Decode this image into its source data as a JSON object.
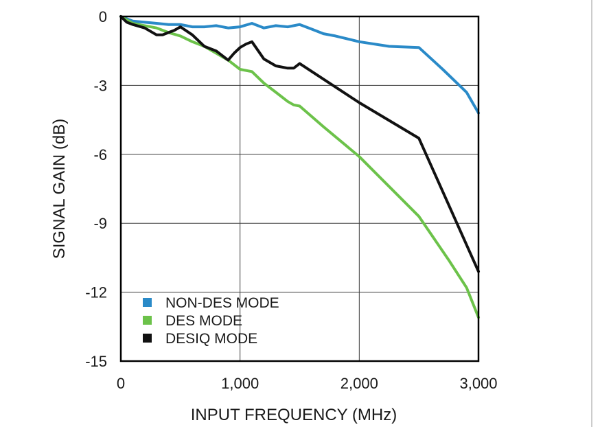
{
  "chart_data": {
    "type": "line",
    "xlabel": "INPUT FREQUENCY (MHz)",
    "ylabel": "SIGNAL GAIN (dB)",
    "xlim": [
      0,
      3000
    ],
    "ylim": [
      -15,
      0
    ],
    "x_ticks": [
      0,
      1000,
      2000,
      3000
    ],
    "x_tick_labels": [
      "0",
      "1,000",
      "2,000",
      "3,000"
    ],
    "y_ticks": [
      0,
      -3,
      -6,
      -9,
      -12,
      -15
    ],
    "y_tick_labels": [
      "0",
      "-3",
      "-6",
      "-9",
      "-12",
      "-15"
    ],
    "grid": true,
    "legend_position": "bottom-left",
    "series": [
      {
        "name": "NON-DES MODE",
        "color": "#2a8ac8",
        "x": [
          0,
          100,
          300,
          400,
          500,
          600,
          700,
          800,
          900,
          1000,
          1100,
          1200,
          1300,
          1400,
          1500,
          1600,
          1700,
          1800,
          2000,
          2250,
          2500,
          2700,
          2900,
          3000
        ],
        "y": [
          0,
          -0.2,
          -0.3,
          -0.35,
          -0.35,
          -0.45,
          -0.45,
          -0.4,
          -0.5,
          -0.45,
          -0.3,
          -0.5,
          -0.4,
          -0.45,
          -0.35,
          -0.55,
          -0.75,
          -0.85,
          -1.1,
          -1.3,
          -1.35,
          -2.3,
          -3.3,
          -4.2
        ]
      },
      {
        "name": "DES MODE",
        "color": "#6cc24a",
        "x": [
          0,
          100,
          200,
          300,
          400,
          500,
          600,
          700,
          800,
          900,
          1000,
          1100,
          1200,
          1300,
          1400,
          1450,
          1500,
          1700,
          2000,
          2250,
          2500,
          2750,
          2900,
          3000
        ],
        "y": [
          0,
          -0.3,
          -0.4,
          -0.5,
          -0.7,
          -0.85,
          -1.1,
          -1.3,
          -1.6,
          -1.9,
          -2.3,
          -2.4,
          -2.9,
          -3.3,
          -3.7,
          -3.85,
          -3.9,
          -4.8,
          -6.1,
          -7.4,
          -8.7,
          -10.6,
          -11.8,
          -13.1
        ]
      },
      {
        "name": "DESIQ MODE",
        "color": "#111111",
        "x": [
          0,
          50,
          100,
          200,
          300,
          350,
          400,
          450,
          500,
          600,
          700,
          800,
          900,
          950,
          1000,
          1050,
          1100,
          1200,
          1300,
          1400,
          1450,
          1500,
          2000,
          2500,
          3000
        ],
        "y": [
          0,
          -0.25,
          -0.35,
          -0.5,
          -0.8,
          -0.8,
          -0.7,
          -0.6,
          -0.45,
          -0.8,
          -1.3,
          -1.5,
          -1.9,
          -1.6,
          -1.35,
          -1.2,
          -1.1,
          -1.85,
          -2.15,
          -2.25,
          -2.25,
          -2.05,
          -3.75,
          -5.3,
          -11.1
        ]
      }
    ]
  }
}
